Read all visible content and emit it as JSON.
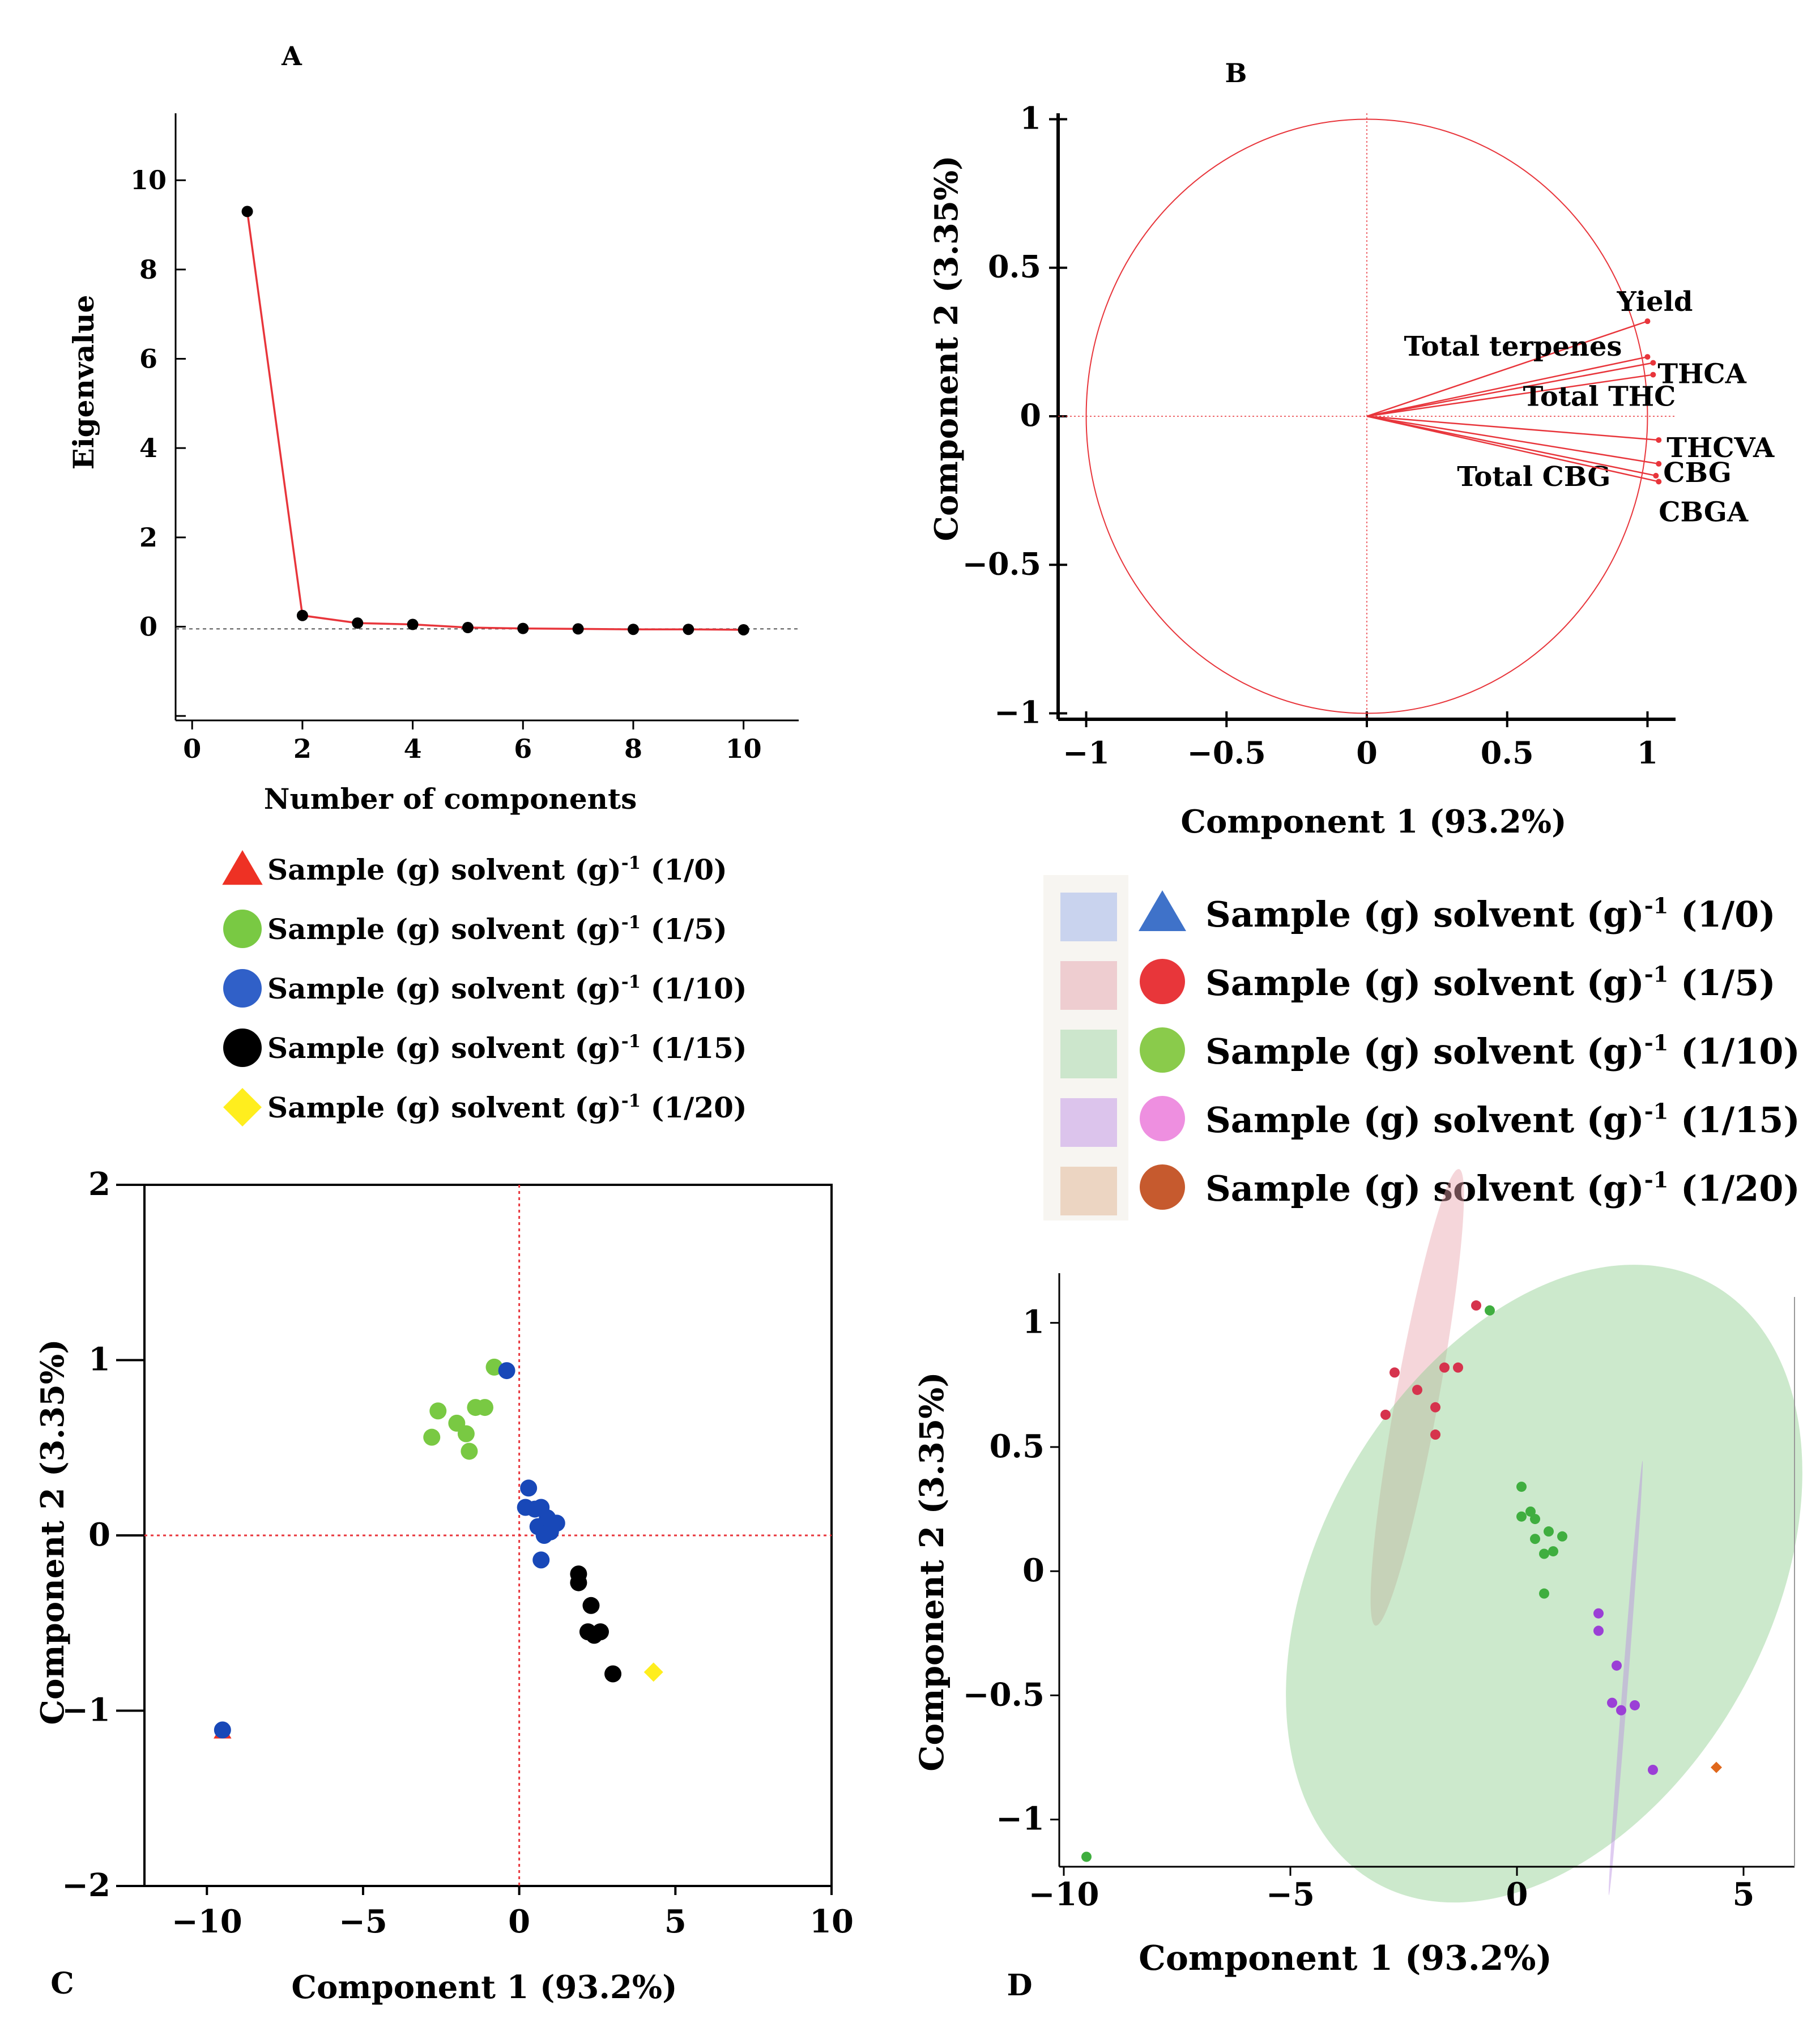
{
  "figure": {
    "panel_labels": [
      "A",
      "B",
      "C",
      "D"
    ]
  },
  "legend_ac": {
    "items": [
      {
        "label": "Sample (g) solvent (g)",
        "sup": "-1",
        "ratio": "(1/0)",
        "marker": "triangle",
        "color": "#ee3124"
      },
      {
        "label": "Sample (g) solvent (g)",
        "sup": "-1",
        "ratio": "(1/5)",
        "marker": "circle",
        "color": "#79c943"
      },
      {
        "label": "Sample (g) solvent (g)",
        "sup": "-1",
        "ratio": "(1/10)",
        "marker": "circle",
        "color": "#3060c8"
      },
      {
        "label": "Sample (g) solvent (g)",
        "sup": "-1",
        "ratio": "(1/15)",
        "marker": "circle",
        "color": "#000000"
      },
      {
        "label": "Sample (g) solvent (g)",
        "sup": "-1",
        "ratio": "(1/20)",
        "marker": "diamond",
        "color": "#ffee1e"
      }
    ]
  },
  "legend_d": {
    "items": [
      {
        "label": "Sample (g) solvent (g)",
        "sup": "-1",
        "ratio": "(1/0)",
        "marker": "triangle",
        "color": "#3f72c9",
        "swatch": "#c9d3ee"
      },
      {
        "label": "Sample (g) solvent (g)",
        "sup": "-1",
        "ratio": "(1/5)",
        "marker": "circle",
        "color": "#e8363a",
        "swatch": "#eecdd0"
      },
      {
        "label": "Sample (g) solvent (g)",
        "sup": "-1",
        "ratio": "(1/10)",
        "marker": "circle",
        "color": "#8acb4b",
        "swatch": "#cce6cc"
      },
      {
        "label": "Sample (g) solvent (g)",
        "sup": "-1",
        "ratio": "(1/15)",
        "marker": "circle",
        "color": "#ee8fe0",
        "swatch": "#dcc4ec"
      },
      {
        "label": "Sample (g) solvent (g)",
        "sup": "-1",
        "ratio": "(1/20)",
        "marker": "circle",
        "color": "#c65a2e",
        "swatch": "#ecd5c2"
      }
    ]
  },
  "chart_data": [
    {
      "id": "A",
      "type": "line",
      "title": "A",
      "xlabel": "Number of components",
      "ylabel": "Eigenvalue",
      "xlim": [
        -0.3,
        11
      ],
      "ylim": [
        -2.1,
        11.5
      ],
      "xticks": [
        0,
        2,
        4,
        6,
        8,
        10
      ],
      "yticks": [
        0,
        2,
        4,
        6,
        8,
        10
      ],
      "minor_yticks": [
        -2
      ],
      "x": [
        1,
        2,
        3,
        4,
        5,
        6,
        7,
        8,
        9,
        10
      ],
      "y": [
        9.3,
        0.25,
        0.08,
        0.05,
        -0.02,
        -0.04,
        -0.05,
        -0.06,
        -0.06,
        -0.07
      ],
      "reference_line_y": -0.05,
      "line_color": "#e8353b",
      "marker_color": "#000000"
    },
    {
      "id": "B",
      "type": "scatter",
      "title": "B",
      "subtype": "correlation circle (loadings)",
      "xlabel": "Component 1 (93.2%)",
      "ylabel": "Component 2 (3.35%)",
      "xlim": [
        -1.1,
        1.1
      ],
      "ylim": [
        -1.02,
        1.02
      ],
      "xticks": [
        -1,
        -0.5,
        0,
        0.5,
        1
      ],
      "xtick_labels": [
        "−1",
        "−0.5",
        "0",
        "0.5",
        "1"
      ],
      "yticks": [
        -1,
        -0.5,
        0,
        0.5,
        1
      ],
      "ytick_labels": [
        "−1",
        "−0.5",
        "0",
        "0.5",
        "1"
      ],
      "color": "#e8353b",
      "vectors": [
        {
          "name": "Yield",
          "x": 1.0,
          "y": 0.32
        },
        {
          "name": "Total terpenes",
          "x": 1.0,
          "y": 0.2
        },
        {
          "name": "THCA",
          "x": 1.02,
          "y": 0.18
        },
        {
          "name": "Total THC",
          "x": 1.02,
          "y": 0.14
        },
        {
          "name": "THCVA",
          "x": 1.04,
          "y": -0.08
        },
        {
          "name": "CBG",
          "x": 1.04,
          "y": -0.16
        },
        {
          "name": "Total CBG",
          "x": 1.03,
          "y": -0.2
        },
        {
          "name": "CBGA",
          "x": 1.04,
          "y": -0.22
        }
      ]
    },
    {
      "id": "C",
      "type": "scatter",
      "title": "C",
      "xlabel": "Component 1 (93.2%)",
      "ylabel": "Component 2 (3.35%)",
      "xlim": [
        -12,
        10
      ],
      "ylim": [
        -2,
        2
      ],
      "xticks": [
        -10,
        -5,
        0,
        5,
        10
      ],
      "xtick_labels": [
        "−10",
        "−5",
        "0",
        "5",
        "10"
      ],
      "yticks": [
        -2,
        -1,
        0,
        1,
        2
      ],
      "ytick_labels": [
        "−2",
        "−1",
        "0",
        "1",
        "2"
      ],
      "reference_lines": {
        "x": 0,
        "y": 0
      },
      "series": [
        {
          "name": "(1/0)",
          "marker": "triangle",
          "color": "#ee3124",
          "points": [
            [
              -9.5,
              -1.12
            ]
          ]
        },
        {
          "name": "(1/5)",
          "marker": "circle",
          "color": "#79c943",
          "points": [
            [
              -2.8,
              0.56
            ],
            [
              -2.6,
              0.71
            ],
            [
              -2.0,
              0.64
            ],
            [
              -1.7,
              0.58
            ],
            [
              -1.6,
              0.48
            ],
            [
              -1.4,
              0.73
            ],
            [
              -1.1,
              0.73
            ],
            [
              -0.8,
              0.96
            ]
          ]
        },
        {
          "name": "(1/10)",
          "marker": "circle",
          "color": "#1848b8",
          "points": [
            [
              -9.5,
              -1.11
            ],
            [
              -0.4,
              0.94
            ],
            [
              0.3,
              0.27
            ],
            [
              0.2,
              0.16
            ],
            [
              0.5,
              0.15
            ],
            [
              0.7,
              0.16
            ],
            [
              0.6,
              0.05
            ],
            [
              0.9,
              0.1
            ],
            [
              1.2,
              0.07
            ],
            [
              1.0,
              0.02
            ],
            [
              0.8,
              0.0
            ],
            [
              0.7,
              -0.14
            ]
          ]
        },
        {
          "name": "(1/15)",
          "marker": "circle",
          "color": "#000000",
          "points": [
            [
              1.9,
              -0.22
            ],
            [
              1.9,
              -0.27
            ],
            [
              2.3,
              -0.4
            ],
            [
              2.2,
              -0.55
            ],
            [
              2.4,
              -0.57
            ],
            [
              2.6,
              -0.55
            ],
            [
              3.0,
              -0.79
            ]
          ]
        },
        {
          "name": "(1/20)",
          "marker": "diamond",
          "color": "#ffee1e",
          "points": [
            [
              4.3,
              -0.78
            ]
          ]
        }
      ]
    },
    {
      "id": "D",
      "type": "scatter",
      "title": "D",
      "subtype": "scores with confidence ellipses",
      "xlabel": "Component 1 (93.2%)",
      "ylabel": "Component 2 (3.35%)",
      "xlim": [
        -10.1,
        6
      ],
      "ylim": [
        -1.19,
        1.2
      ],
      "xticks": [
        -10,
        -5,
        0,
        5
      ],
      "xtick_labels": [
        "−10",
        "−5",
        "0",
        "5"
      ],
      "yticks": [
        -1,
        -0.5,
        0,
        0.5,
        1
      ],
      "ytick_labels": [
        "−1",
        "−0.5",
        "0",
        "0.5",
        "1"
      ],
      "ellipses": [
        {
          "name": "(1/5)",
          "cx": -2.2,
          "cy": 0.7,
          "rx": 2.6,
          "ry": 0.24,
          "angle_deg": 45,
          "fill": "#e8a3ac"
        },
        {
          "name": "(1/10)",
          "cx": 0.6,
          "cy": -0.05,
          "rx": 7.8,
          "ry": 1.9,
          "angle_deg": 18,
          "fill": "#8fcf8f"
        },
        {
          "name": "(1/15)",
          "cx": 2.4,
          "cy": -0.43,
          "rx": 1.9,
          "ry": 0.05,
          "angle_deg": 67,
          "fill": "#b98ee0"
        }
      ],
      "series": [
        {
          "name": "(1/5)",
          "color": "#d6334d",
          "points": [
            [
              -2.9,
              0.63
            ],
            [
              -2.7,
              0.8
            ],
            [
              -2.2,
              0.73
            ],
            [
              -1.8,
              0.66
            ],
            [
              -1.8,
              0.55
            ],
            [
              -1.6,
              0.82
            ],
            [
              -1.3,
              0.82
            ],
            [
              -0.9,
              1.07
            ]
          ]
        },
        {
          "name": "(1/10)",
          "color": "#3fae3f",
          "points": [
            [
              -9.5,
              -1.15
            ],
            [
              -0.6,
              1.05
            ],
            [
              0.1,
              0.34
            ],
            [
              0.1,
              0.22
            ],
            [
              0.3,
              0.24
            ],
            [
              0.4,
              0.21
            ],
            [
              0.4,
              0.13
            ],
            [
              0.7,
              0.16
            ],
            [
              1.0,
              0.14
            ],
            [
              0.8,
              0.08
            ],
            [
              0.6,
              0.07
            ],
            [
              0.6,
              -0.09
            ]
          ]
        },
        {
          "name": "(1/15)",
          "color": "#9b3fd6",
          "points": [
            [
              1.8,
              -0.17
            ],
            [
              1.8,
              -0.24
            ],
            [
              2.2,
              -0.38
            ],
            [
              2.1,
              -0.53
            ],
            [
              2.3,
              -0.56
            ],
            [
              2.6,
              -0.54
            ],
            [
              3.0,
              -0.8
            ]
          ]
        },
        {
          "name": "(1/20)",
          "color": "#e0681c",
          "marker": "diamond",
          "points": [
            [
              4.4,
              -0.79
            ]
          ]
        }
      ]
    }
  ]
}
